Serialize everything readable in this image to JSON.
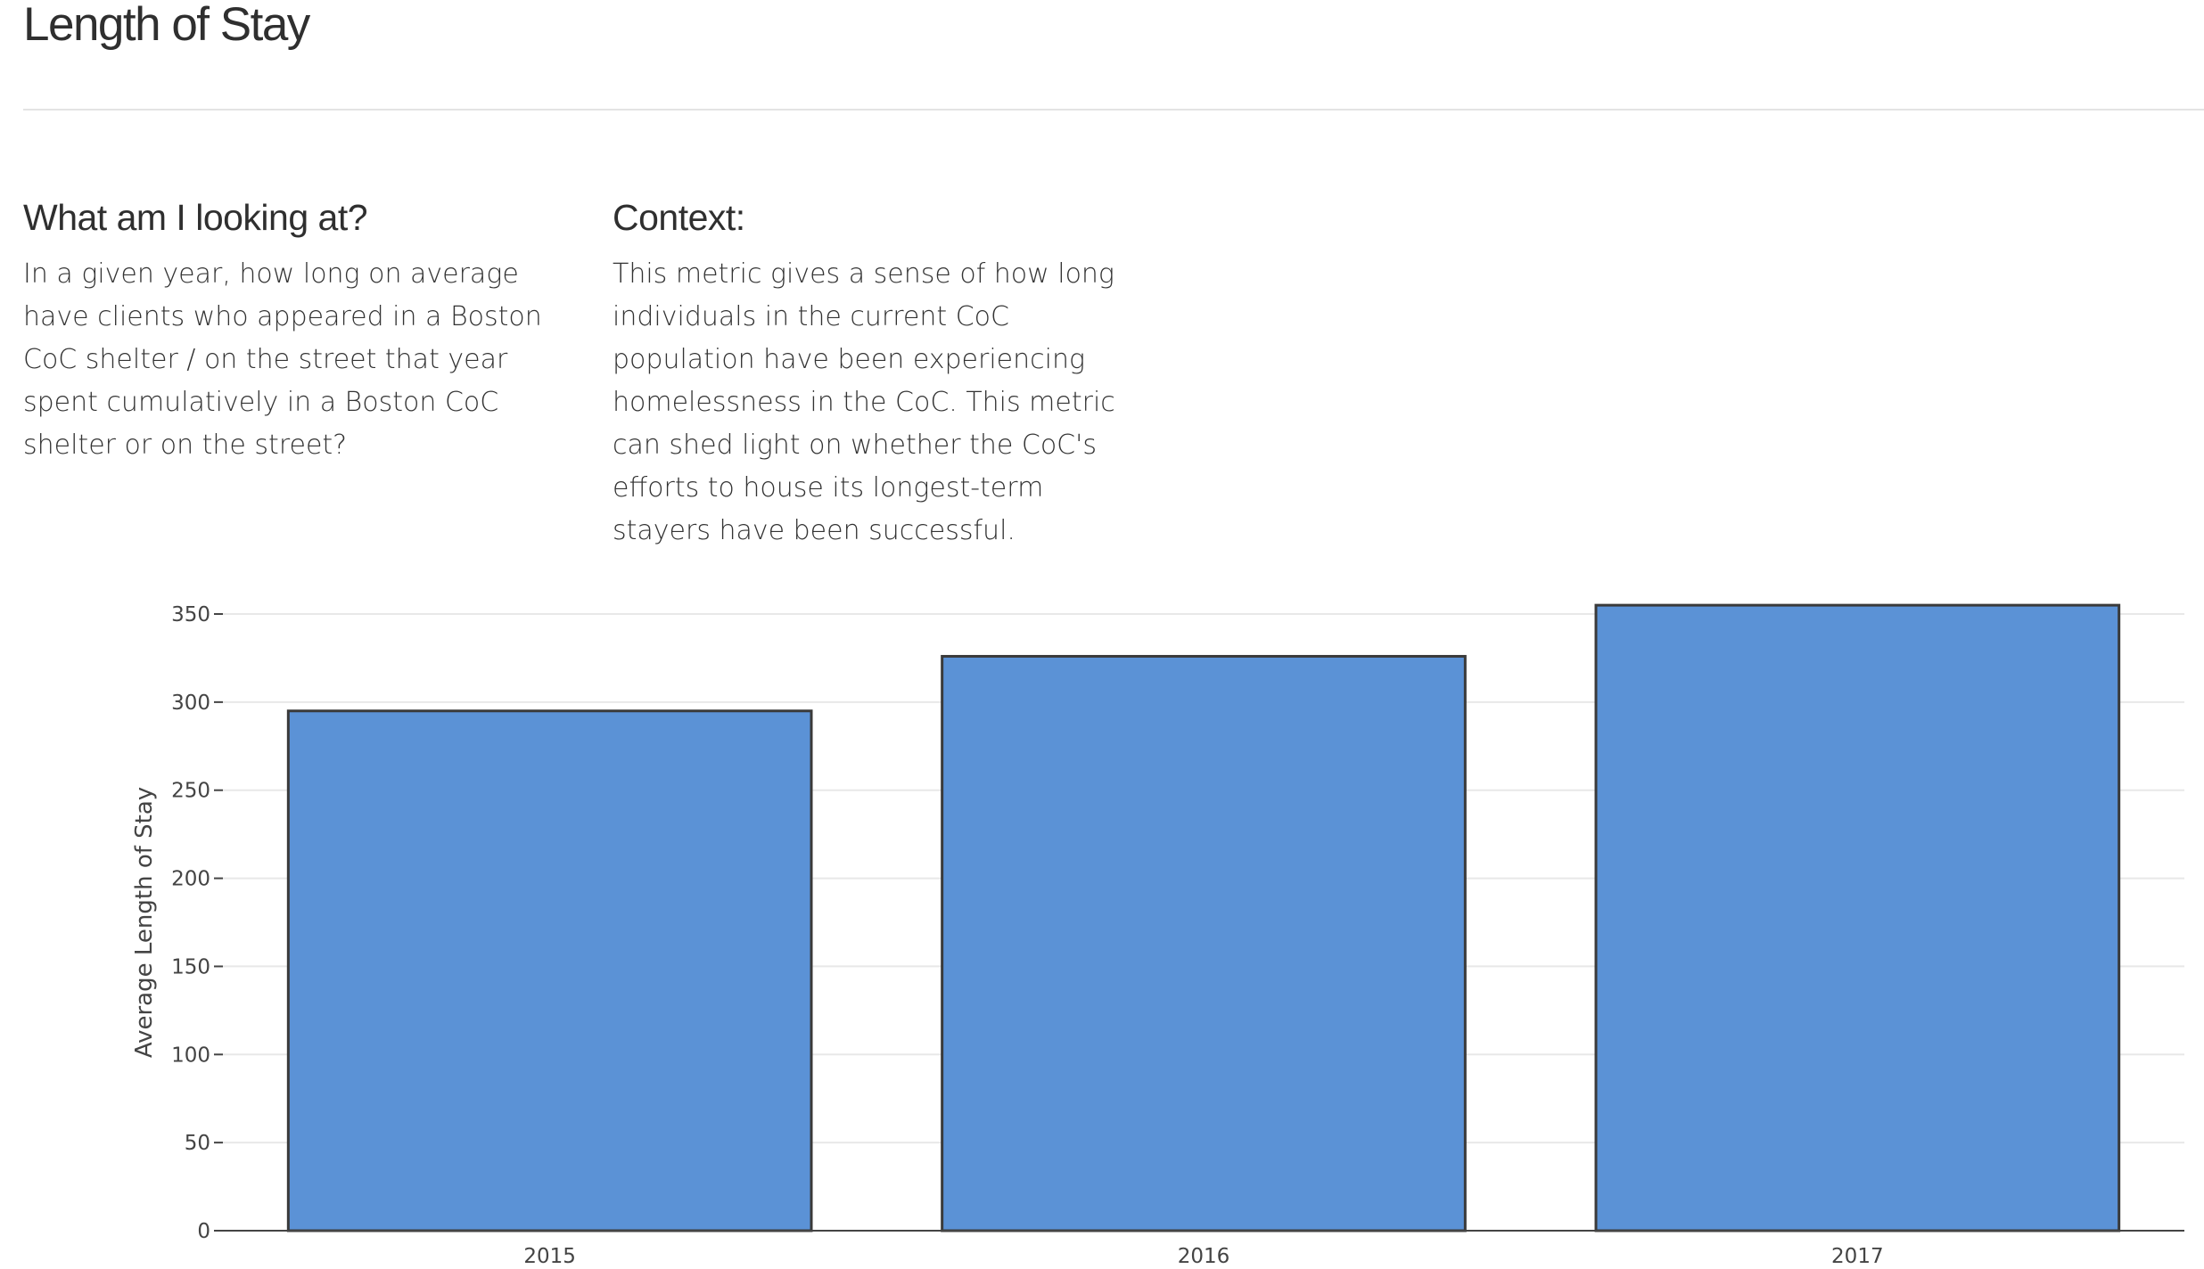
{
  "page": {
    "title": "Length of Stay"
  },
  "info": {
    "looking": {
      "heading": "What am I looking at?",
      "body": "In a given year, how long on average have clients who appeared in a Boston CoC shelter / on the street that year spent cumulatively in a Boston CoC shelter or on the street?"
    },
    "context": {
      "heading": "Context:",
      "body": "This metric gives a sense of how long individuals in the current CoC population have been experiencing homelessness in the CoC. This metric can shed light on whether the CoC's efforts to house its longest-term stayers have been successful."
    }
  },
  "colors": {
    "bar_fill": "#5b92d6",
    "bar_stroke": "#3a3a3a",
    "grid": "#e8e8e8",
    "axis": "#444444"
  },
  "chart_data": {
    "type": "bar",
    "categories": [
      "2015",
      "2016",
      "2017"
    ],
    "values": [
      295,
      326,
      355
    ],
    "title": "",
    "xlabel": "",
    "ylabel": "Average Length of Stay",
    "ylim": [
      0,
      350
    ],
    "yticks": [
      0,
      50,
      100,
      150,
      200,
      250,
      300,
      350
    ],
    "grid": true,
    "legend": "none"
  }
}
